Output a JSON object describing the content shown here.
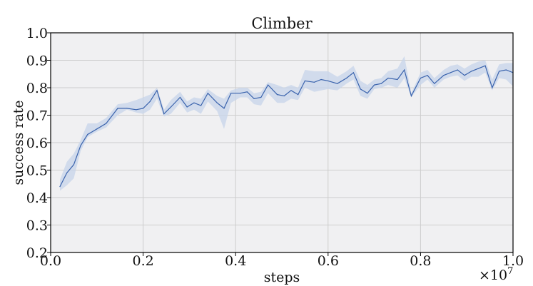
{
  "chart_data": {
    "type": "line",
    "title": "Climber",
    "xlabel": "steps",
    "ylabel": "success rate",
    "x_multiplier": "×10",
    "x_multiplier_exp": "7",
    "xlim": [
      0.0,
      1.0
    ],
    "ylim": [
      0.2,
      1.0
    ],
    "xticks": [
      "0.0",
      "0.2",
      "0.4",
      "0.6",
      "0.8",
      "1.0"
    ],
    "yticks": [
      "0.2",
      "0.3",
      "0.4",
      "0.5",
      "0.6",
      "0.7",
      "0.8",
      "0.9",
      "1.0"
    ],
    "grid": true,
    "colors": {
      "line": "#3a63ad",
      "band": "#c7d4ea",
      "plot_bg": "#f0f0f2",
      "grid": "#cdcdcd"
    },
    "series": [
      {
        "x": [
          0.02,
          0.035,
          0.05,
          0.065,
          0.08,
          0.1,
          0.12,
          0.145,
          0.165,
          0.185,
          0.2,
          0.215,
          0.23,
          0.245,
          0.26,
          0.28,
          0.295,
          0.31,
          0.325,
          0.34,
          0.36,
          0.375,
          0.39,
          0.41,
          0.425,
          0.44,
          0.455,
          0.47,
          0.49,
          0.505,
          0.52,
          0.535,
          0.55,
          0.57,
          0.585,
          0.6,
          0.62,
          0.64,
          0.655,
          0.67,
          0.685,
          0.7,
          0.715,
          0.73,
          0.75,
          0.765,
          0.78,
          0.8,
          0.815,
          0.83,
          0.85,
          0.865,
          0.88,
          0.895,
          0.91,
          0.925,
          0.94,
          0.955,
          0.97,
          0.985,
          1.0
        ],
        "values": [
          0.44,
          0.49,
          0.52,
          0.59,
          0.63,
          0.65,
          0.67,
          0.725,
          0.725,
          0.72,
          0.725,
          0.75,
          0.79,
          0.705,
          0.73,
          0.765,
          0.73,
          0.745,
          0.735,
          0.78,
          0.745,
          0.725,
          0.78,
          0.78,
          0.785,
          0.76,
          0.765,
          0.81,
          0.775,
          0.77,
          0.79,
          0.775,
          0.825,
          0.82,
          0.83,
          0.825,
          0.815,
          0.835,
          0.855,
          0.795,
          0.78,
          0.81,
          0.815,
          0.835,
          0.83,
          0.865,
          0.77,
          0.835,
          0.845,
          0.815,
          0.845,
          0.855,
          0.865,
          0.845,
          0.86,
          0.87,
          0.88,
          0.8,
          0.86,
          0.865,
          0.855
        ],
        "band_lower": [
          0.425,
          0.445,
          0.47,
          0.57,
          0.62,
          0.64,
          0.655,
          0.7,
          0.72,
          0.71,
          0.705,
          0.72,
          0.76,
          0.695,
          0.705,
          0.745,
          0.71,
          0.72,
          0.705,
          0.75,
          0.715,
          0.65,
          0.745,
          0.765,
          0.765,
          0.74,
          0.735,
          0.78,
          0.745,
          0.745,
          0.76,
          0.755,
          0.8,
          0.785,
          0.79,
          0.795,
          0.79,
          0.815,
          0.83,
          0.77,
          0.76,
          0.795,
          0.8,
          0.81,
          0.8,
          0.835,
          0.765,
          0.81,
          0.83,
          0.8,
          0.83,
          0.84,
          0.845,
          0.825,
          0.84,
          0.84,
          0.855,
          0.79,
          0.835,
          0.83,
          0.805
        ],
        "band_upper": [
          0.465,
          0.53,
          0.56,
          0.61,
          0.67,
          0.67,
          0.69,
          0.74,
          0.745,
          0.755,
          0.765,
          0.775,
          0.8,
          0.72,
          0.755,
          0.785,
          0.75,
          0.765,
          0.76,
          0.795,
          0.77,
          0.76,
          0.79,
          0.8,
          0.8,
          0.78,
          0.785,
          0.82,
          0.81,
          0.8,
          0.81,
          0.8,
          0.865,
          0.86,
          0.86,
          0.86,
          0.84,
          0.86,
          0.88,
          0.825,
          0.81,
          0.83,
          0.835,
          0.86,
          0.87,
          0.915,
          0.78,
          0.855,
          0.865,
          0.835,
          0.865,
          0.88,
          0.885,
          0.87,
          0.885,
          0.895,
          0.9,
          0.83,
          0.885,
          0.89,
          0.89
        ]
      }
    ]
  }
}
